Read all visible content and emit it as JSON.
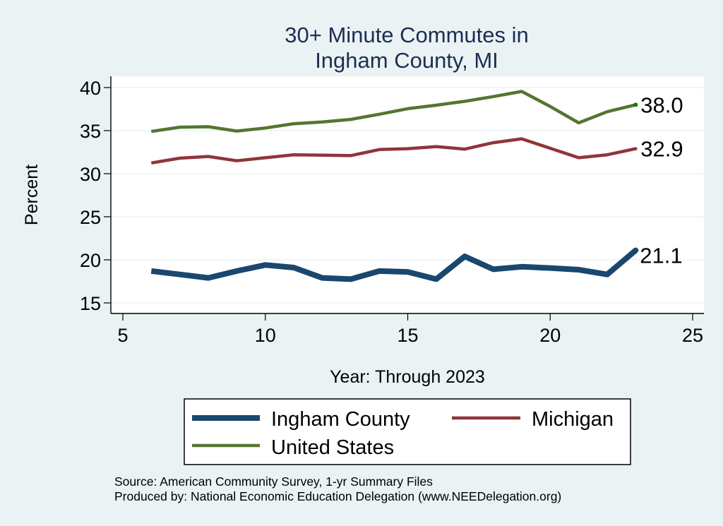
{
  "chart_data": {
    "type": "line",
    "title": [
      "30+ Minute Commutes in",
      "Ingham County, MI"
    ],
    "xlabel": "Year: Through 2023",
    "ylabel": "Percent",
    "xlim": [
      5,
      25
    ],
    "ylim": [
      14,
      41
    ],
    "xticks": [
      5,
      10,
      15,
      20,
      25
    ],
    "yticks": [
      15,
      20,
      25,
      30,
      35,
      40
    ],
    "grid": true,
    "x": [
      6,
      7,
      8,
      9,
      10,
      11,
      12,
      13,
      14,
      15,
      16,
      17,
      18,
      19,
      20,
      21,
      22,
      23
    ],
    "series": [
      {
        "name": "Ingham County",
        "color": "#1a476f",
        "values": [
          18.7,
          18.3,
          17.9,
          18.7,
          19.4,
          19.1,
          17.9,
          17.75,
          18.7,
          18.6,
          17.75,
          20.4,
          18.9,
          19.2,
          19.05,
          18.85,
          18.3,
          21.1
        ],
        "end_label": "21.1"
      },
      {
        "name": "Michigan",
        "color": "#90353b",
        "values": [
          31.25,
          31.8,
          32.0,
          31.5,
          31.85,
          32.2,
          32.15,
          32.1,
          32.8,
          32.9,
          33.15,
          32.85,
          33.6,
          34.05,
          32.95,
          31.85,
          32.2,
          32.9
        ],
        "end_label": "32.9"
      },
      {
        "name": "United States",
        "color": "#55752f",
        "values": [
          34.9,
          35.4,
          35.45,
          34.95,
          35.3,
          35.8,
          36.0,
          36.3,
          36.9,
          37.55,
          37.95,
          38.4,
          38.95,
          39.55,
          37.8,
          35.9,
          37.2,
          38.0
        ],
        "end_label": "38.0"
      }
    ],
    "legend": {
      "placement": "bottom",
      "entries": [
        "Ingham County",
        "Michigan",
        "United States"
      ]
    },
    "notes": [
      "Source: American Community Survey, 1-yr Summary Files",
      "Produced by: National Economic Education Delegation (www.NEEDelegation.org)"
    ]
  }
}
